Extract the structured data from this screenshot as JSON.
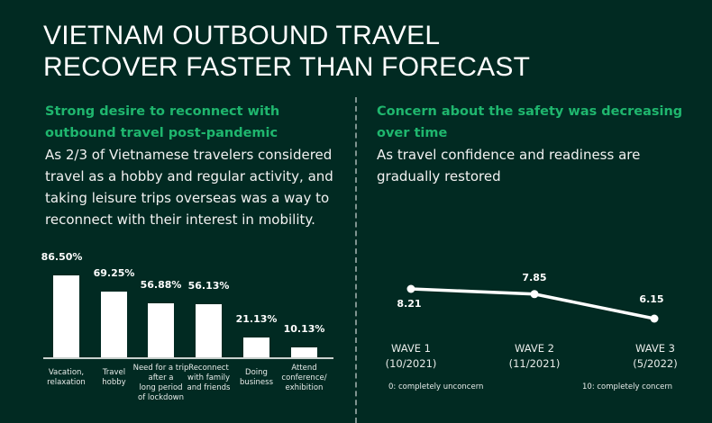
{
  "header": {
    "title_line1": "VIETNAM OUTBOUND TRAVEL",
    "title_line2": "RECOVER FASTER THAN FORECAST"
  },
  "left_section": {
    "heading": "Strong desire to reconnect with outbound travel post-pandemic",
    "body": "As 2/3 of Vietnamese travelers considered travel as a hobby and regular activity, and taking leisure trips overseas was a way to reconnect with their interest in mobility."
  },
  "right_section": {
    "heading": "Concern about the safety was decreasing over time",
    "body": "As travel confidence and readiness are gradually restored"
  },
  "colors": {
    "background": "#012a22",
    "accent_green": "#1fb66e",
    "bar": "#ffffff",
    "divider": "#7f9490"
  },
  "chart_data": [
    {
      "type": "bar",
      "title": "Reasons for outbound travel",
      "categories": [
        "Vacation, relaxation",
        "Travel hobby",
        "Need for a trip after a long period of lockdown",
        "Reconnect with family and friends",
        "Doing business",
        "Attend conference/ exhibition"
      ],
      "category_lines": [
        [
          "Vacation,",
          "relaxation"
        ],
        [
          "Travel",
          "hobby"
        ],
        [
          "Need for a trip",
          "after a",
          "long period",
          "of lockdown"
        ],
        [
          "Reconnect",
          "with family",
          "and friends"
        ],
        [
          "Doing",
          "business"
        ],
        [
          "Attend",
          "conference/",
          "exhibition"
        ]
      ],
      "values": [
        86.5,
        69.25,
        56.88,
        56.13,
        21.13,
        10.13
      ],
      "value_labels": [
        "86.50%",
        "69.25%",
        "56.88%",
        "56.13%",
        "21.13%",
        "10.13%"
      ],
      "xlabel": "",
      "ylabel": "",
      "ylim": [
        0,
        100
      ],
      "grid": false,
      "legend": "none"
    },
    {
      "type": "line",
      "title": "Safety concern score",
      "categories": [
        "WAVE 1 (10/2021)",
        "WAVE 2 (11/2021)",
        "WAVE 3 (5/2022)"
      ],
      "waves": [
        {
          "name": "WAVE 1",
          "date": "(10/2021)"
        },
        {
          "name": "WAVE 2",
          "date": "(11/2021)"
        },
        {
          "name": "WAVE 3",
          "date": "(5/2022)"
        }
      ],
      "values": [
        8.21,
        7.85,
        6.15
      ],
      "value_labels": [
        "8.21",
        "7.85",
        "6.15"
      ],
      "scale_min_label": "0: completely unconcern",
      "scale_max_label": "10: completely concern",
      "ylim": [
        0,
        10
      ],
      "grid": false,
      "legend": "none"
    }
  ]
}
